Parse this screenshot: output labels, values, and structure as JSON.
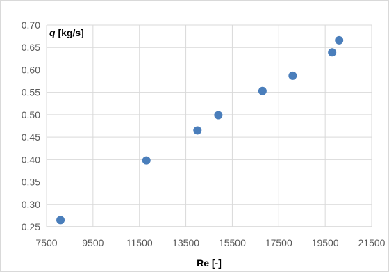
{
  "chart_data": {
    "type": "scatter",
    "title": "",
    "xlabel": "Re [-]",
    "ylabel_var": "q",
    "ylabel_unit": " [kg/s]",
    "xlim": [
      7500,
      21500
    ],
    "ylim": [
      0.25,
      0.7
    ],
    "xticks": [
      7500,
      9500,
      11500,
      13500,
      15500,
      17500,
      19500,
      21500
    ],
    "yticks": [
      0.25,
      0.3,
      0.35,
      0.4,
      0.45,
      0.5,
      0.55,
      0.6,
      0.65,
      0.7
    ],
    "ytick_labels": [
      "0.25",
      "0.30",
      "0.35",
      "0.40",
      "0.45",
      "0.50",
      "0.55",
      "0.60",
      "0.65",
      "0.70"
    ],
    "grid": true,
    "legend": "none",
    "marker_color": "#4a7ebb",
    "series": [
      {
        "x": [
          8100,
          11800,
          14000,
          14900,
          16800,
          18100,
          19800,
          20100
        ],
        "y": [
          0.265,
          0.398,
          0.465,
          0.499,
          0.553,
          0.587,
          0.639,
          0.666
        ]
      }
    ]
  }
}
